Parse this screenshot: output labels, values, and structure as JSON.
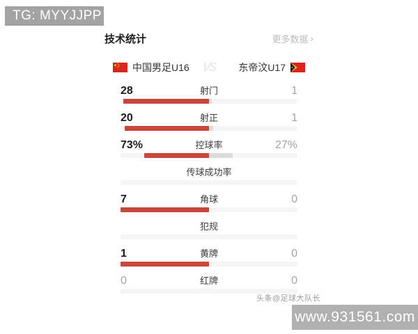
{
  "header": {
    "badge_text": "TG: MYYJJPP",
    "badge_color": "#a3a3a3"
  },
  "panel": {
    "title": "技术统计",
    "more_link": "更多数据",
    "chevron": "›",
    "vs_label": "VS",
    "home_team": {
      "name": "中国男足U16",
      "flag": "china-flag"
    },
    "away_team": {
      "name": "东帝汶U17",
      "flag": "timor-leste-flag"
    }
  },
  "chart_data": {
    "type": "bar",
    "title": "技术统计",
    "teams": [
      "中国男足U16",
      "东帝汶U17"
    ],
    "legend_position": "top",
    "rows": [
      {
        "label": "射门",
        "home": "28",
        "away": "1",
        "home_pct": 96.6,
        "away_pct": 3.4
      },
      {
        "label": "射正",
        "home": "20",
        "away": "1",
        "home_pct": 95.2,
        "away_pct": 4.8
      },
      {
        "label": "控球率",
        "home": "73%",
        "away": "27%",
        "home_pct": 73,
        "away_pct": 27
      },
      {
        "label": "传球成功率",
        "home": "",
        "away": "",
        "home_pct": 0,
        "away_pct": 0
      },
      {
        "label": "角球",
        "home": "7",
        "away": "0",
        "home_pct": 100,
        "away_pct": 0
      },
      {
        "label": "犯规",
        "home": "",
        "away": "",
        "home_pct": 0,
        "away_pct": 0
      },
      {
        "label": "黄牌",
        "home": "1",
        "away": "0",
        "home_pct": 100,
        "away_pct": 0
      },
      {
        "label": "红牌",
        "home": "0",
        "away": "0",
        "home_pct": 0,
        "away_pct": 0
      }
    ],
    "colors": {
      "home_bar": "#c8473c",
      "away_bar": "#dcdcdc",
      "track": "#f5f5f6",
      "china_flag_red": "#d5281e",
      "timor_flag_red": "#dc241f",
      "star_yellow": "#ffde00"
    }
  },
  "watermarks": {
    "credit": "头条@足球大队长",
    "site": "www.931561.com"
  }
}
